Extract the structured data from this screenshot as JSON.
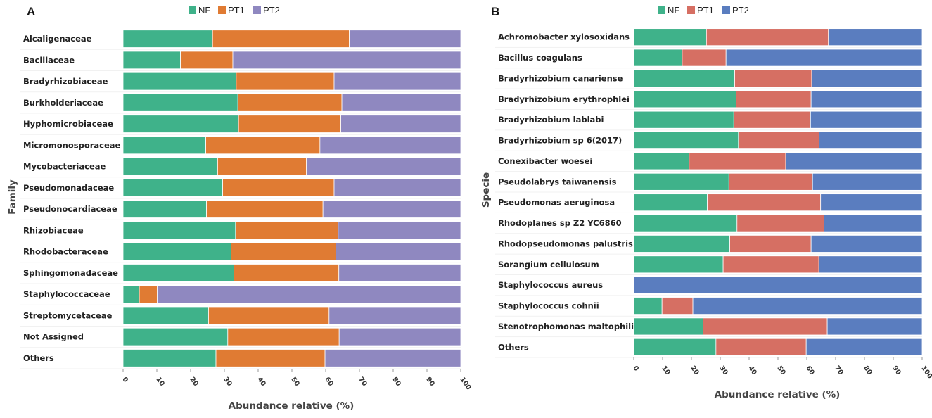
{
  "chart_data": [
    {
      "type": "bar",
      "orientation": "horizontal",
      "stacked": true,
      "panel_label": "A",
      "xlabel": "Abundance relative (%)",
      "ylabel": "Family",
      "xlim": [
        0,
        100
      ],
      "xticks": [
        "0",
        "10",
        "20",
        "30",
        "40",
        "50",
        "60",
        "70",
        "80",
        "90",
        "100"
      ],
      "legend": {
        "position": "top-center",
        "labels": [
          "NF",
          "PT1",
          "PT2"
        ]
      },
      "colors": [
        "#3fb28a",
        "#e07b33",
        "#8f88c0"
      ],
      "categories": [
        "Alcaligenaceae",
        "Bacillaceae",
        "Bradyrhizobiaceae",
        "Burkholderiaceae",
        "Hyphomicrobiaceae",
        "Micromonosporaceae",
        "Mycobacteriaceae",
        "Pseudomonadaceae",
        "Pseudonocardiaceae",
        "Rhizobiaceae",
        "Rhodobacteraceae",
        "Sphingomonadaceae",
        "Staphylococcaceae",
        "Streptomycetaceae",
        "Not Assigned",
        "Others"
      ],
      "series": [
        {
          "name": "NF",
          "values": [
            26.5,
            17,
            33.5,
            34,
            34.2,
            24.5,
            28,
            29.5,
            24.7,
            33.3,
            32,
            32.8,
            4.8,
            25.3,
            31,
            27.5
          ]
        },
        {
          "name": "PT1",
          "values": [
            40.5,
            15.5,
            29,
            30.8,
            30.3,
            33.8,
            26.3,
            33,
            34.5,
            30.4,
            31,
            31.1,
            5.3,
            35.7,
            33,
            32.3
          ]
        },
        {
          "name": "PT2",
          "values": [
            33,
            67.5,
            37.5,
            35.2,
            35.5,
            41.7,
            45.7,
            37.5,
            40.8,
            36.3,
            37,
            36.1,
            89.9,
            39,
            36,
            40.2
          ]
        }
      ]
    },
    {
      "type": "bar",
      "orientation": "horizontal",
      "stacked": true,
      "panel_label": "B",
      "xlabel": "Abundance relative (%)",
      "ylabel": "Specie",
      "xlim": [
        0,
        100
      ],
      "xticks": [
        "0",
        "10",
        "20",
        "30",
        "40",
        "50",
        "60",
        "70",
        "80",
        "90",
        "100"
      ],
      "legend": {
        "position": "top-center",
        "labels": [
          "NF",
          "PT1",
          "PT2"
        ]
      },
      "colors": [
        "#3fb28a",
        "#d66f63",
        "#5a7dbf"
      ],
      "categories": [
        "Achromobacter xylosoxidans",
        "Bacillus coagulans",
        "Bradyrhizobium canariense",
        "Bradyrhizobium erythrophlei",
        "Bradyrhizobium lablabi",
        "Bradyrhizobium sp 6(2017)",
        "Conexibacter woesei",
        "Pseudolabrys taiwanensis",
        "Pseudomonas aeruginosa",
        "Rhodoplanes sp Z2 YC6860",
        "Rhodopseudomonas palustris",
        "Sorangium cellulosum",
        "Staphylococcus aureus",
        "Staphylococcus cohnii",
        "Stenotrophomonas maltophilia",
        "Others"
      ],
      "series": [
        {
          "name": "NF",
          "values": [
            25.2,
            16.8,
            35,
            35.5,
            34.7,
            36.3,
            19.2,
            33,
            25.5,
            35.8,
            33.3,
            31,
            0,
            9.8,
            24,
            28.5
          ]
        },
        {
          "name": "PT1",
          "values": [
            42.3,
            15.2,
            26.7,
            26,
            26.6,
            28,
            33.5,
            29,
            39.3,
            30.2,
            28.2,
            33.2,
            0,
            10.7,
            43.1,
            31.3
          ]
        },
        {
          "name": "PT2",
          "values": [
            32.5,
            68,
            38.3,
            38.5,
            38.7,
            35.7,
            47.3,
            38,
            35.2,
            34,
            38.5,
            35.8,
            100,
            79.5,
            32.9,
            40.2
          ]
        }
      ]
    }
  ]
}
